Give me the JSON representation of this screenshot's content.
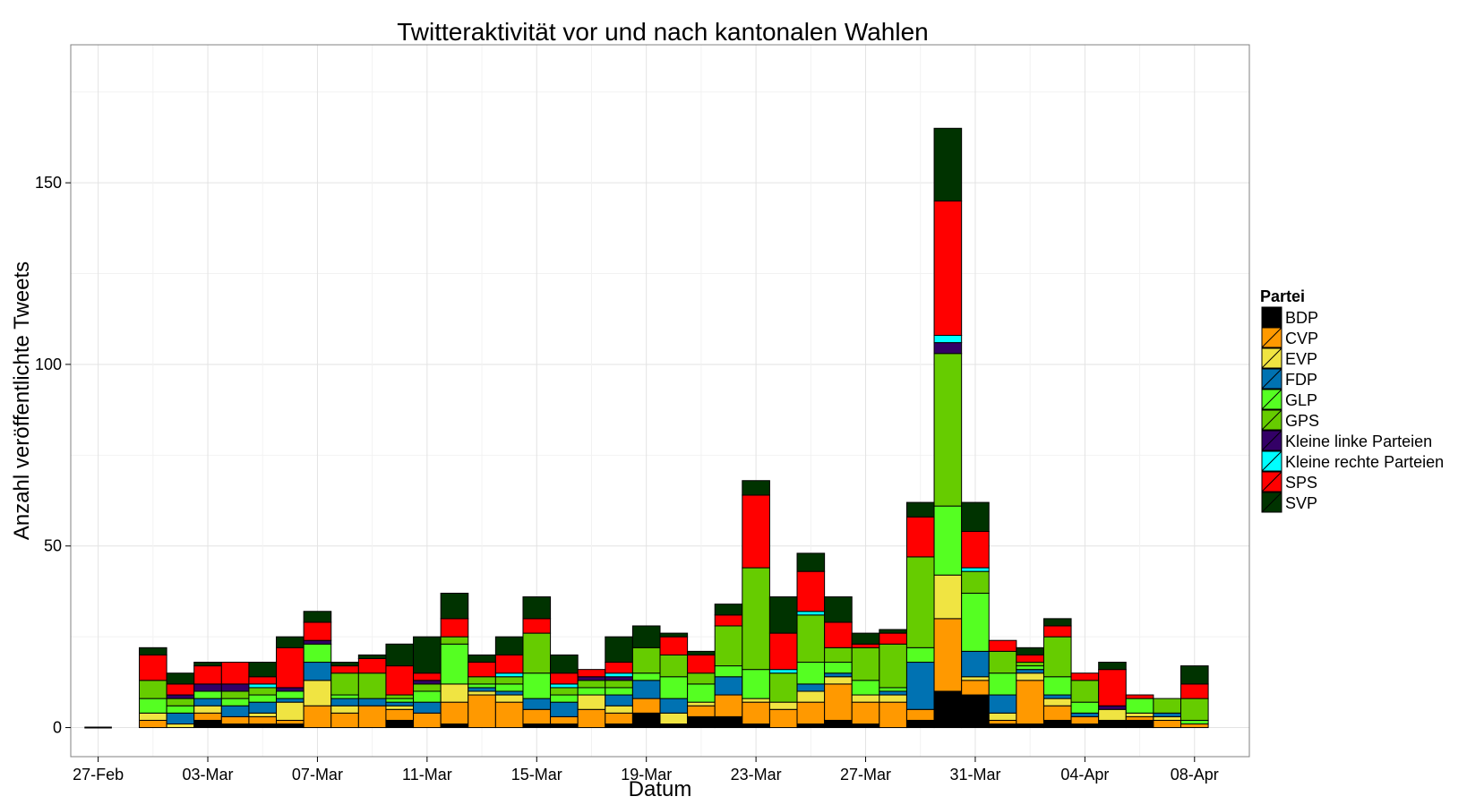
{
  "chart_data": {
    "type": "bar",
    "stacked": true,
    "title": "Twitteraktivität vor und nach kantonalen Wahlen",
    "xlabel": "Datum",
    "ylabel": "Anzahl veröffentlichte Tweets",
    "ylim": [
      -8,
      188
    ],
    "yticks": [
      0,
      50,
      100,
      150
    ],
    "xtick_labels": [
      "27-Feb",
      "03-Mar",
      "07-Mar",
      "11-Mar",
      "15-Mar",
      "19-Mar",
      "23-Mar",
      "27-Mar",
      "31-Mar",
      "04-Apr",
      "08-Apr"
    ],
    "xtick_days": [
      -2,
      2,
      6,
      10,
      14,
      18,
      22,
      26,
      30,
      34,
      38
    ],
    "x_range_days": [
      -3,
      40
    ],
    "grid": true,
    "legend_position": "right",
    "legend_title": "Partei",
    "categories": [
      "27-Feb",
      "28-Feb",
      "01-Mar",
      "02-Mar",
      "03-Mar",
      "04-Mar",
      "05-Mar",
      "06-Mar",
      "07-Mar",
      "08-Mar",
      "09-Mar",
      "10-Mar",
      "11-Mar",
      "12-Mar",
      "13-Mar",
      "14-Mar",
      "15-Mar",
      "16-Mar",
      "17-Mar",
      "18-Mar",
      "19-Mar",
      "20-Mar",
      "21-Mar",
      "22-Mar",
      "23-Mar",
      "24-Mar",
      "25-Mar",
      "26-Mar",
      "27-Mar",
      "28-Mar",
      "29-Mar",
      "30-Mar",
      "31-Mar",
      "01-Apr",
      "02-Apr",
      "03-Apr",
      "04-Apr",
      "05-Apr",
      "06-Apr",
      "07-Apr",
      "08-Apr"
    ],
    "days": [
      -2,
      -1,
      0,
      1,
      2,
      3,
      4,
      5,
      6,
      7,
      8,
      9,
      10,
      11,
      12,
      13,
      14,
      15,
      16,
      17,
      18,
      19,
      20,
      21,
      22,
      23,
      24,
      25,
      26,
      27,
      28,
      29,
      30,
      31,
      32,
      33,
      34,
      35,
      36,
      37,
      38
    ],
    "series": [
      {
        "name": "BDP",
        "color": "#000000",
        "values": [
          0,
          0,
          0,
          0,
          2,
          1,
          1,
          1,
          0,
          0,
          0,
          2,
          0,
          1,
          0,
          0,
          1,
          1,
          0,
          1,
          4,
          1,
          3,
          3,
          1,
          0,
          1,
          2,
          1,
          0,
          2,
          10,
          9,
          1,
          1,
          2,
          1,
          2,
          2,
          0,
          0
        ]
      },
      {
        "name": "CVP",
        "color": "#ff9900",
        "values": [
          0,
          0,
          2,
          0,
          2,
          2,
          2,
          1,
          6,
          4,
          6,
          3,
          4,
          6,
          9,
          7,
          4,
          2,
          5,
          3,
          4,
          0,
          3,
          6,
          6,
          5,
          6,
          10,
          6,
          7,
          3,
          20,
          4,
          1,
          12,
          4,
          2,
          0,
          1,
          2,
          1
        ]
      },
      {
        "name": "EVP",
        "color": "#f0e442",
        "values": [
          0,
          0,
          2,
          1,
          2,
          0,
          1,
          5,
          7,
          2,
          0,
          1,
          0,
          5,
          1,
          2,
          0,
          0,
          4,
          2,
          0,
          3,
          1,
          0,
          1,
          2,
          3,
          2,
          2,
          2,
          0,
          12,
          1,
          2,
          2,
          2,
          0,
          3,
          1,
          1,
          0
        ]
      },
      {
        "name": "FDP",
        "color": "#0072b2",
        "values": [
          0,
          0,
          0,
          3,
          2,
          3,
          3,
          1,
          5,
          2,
          2,
          1,
          3,
          0,
          1,
          1,
          3,
          4,
          0,
          3,
          5,
          4,
          0,
          5,
          0,
          0,
          2,
          1,
          0,
          1,
          13,
          0,
          7,
          5,
          1,
          1,
          1,
          0,
          0,
          1,
          0
        ]
      },
      {
        "name": "GLP",
        "color": "#55ff22",
        "values": [
          0,
          0,
          4,
          2,
          2,
          2,
          2,
          2,
          5,
          1,
          0,
          1,
          3,
          11,
          1,
          2,
          7,
          2,
          2,
          2,
          2,
          6,
          5,
          3,
          8,
          0,
          6,
          3,
          4,
          1,
          4,
          19,
          16,
          6,
          1,
          5,
          3,
          0,
          4,
          0,
          1
        ]
      },
      {
        "name": "GPS",
        "color": "#66cc00",
        "values": [
          0,
          0,
          5,
          2,
          0,
          2,
          2,
          0,
          0,
          6,
          7,
          1,
          2,
          2,
          2,
          2,
          11,
          2,
          2,
          2,
          7,
          6,
          3,
          11,
          28,
          8,
          13,
          4,
          9,
          12,
          25,
          42,
          6,
          6,
          1,
          11,
          6,
          0,
          0,
          4,
          6
        ]
      },
      {
        "name": "Kleine linke Parteien",
        "color": "#330066",
        "values": [
          0,
          0,
          0,
          1,
          2,
          2,
          0,
          1,
          1,
          0,
          0,
          0,
          1,
          0,
          0,
          0,
          0,
          0,
          1,
          1,
          0,
          0,
          0,
          0,
          0,
          0,
          0,
          0,
          0,
          0,
          0,
          3,
          0,
          0,
          0,
          0,
          0,
          1,
          0,
          0,
          0
        ]
      },
      {
        "name": "Kleine rechte Parteien",
        "color": "#00ffff",
        "values": [
          0,
          0,
          0,
          0,
          0,
          0,
          1,
          0,
          0,
          0,
          0,
          0,
          0,
          0,
          0,
          1,
          0,
          1,
          0,
          1,
          0,
          0,
          0,
          0,
          0,
          1,
          1,
          0,
          0,
          0,
          0,
          2,
          1,
          0,
          0,
          0,
          0,
          0,
          0,
          0,
          0
        ]
      },
      {
        "name": "SPS",
        "color": "#ff0000",
        "values": [
          0,
          0,
          7,
          3,
          5,
          6,
          2,
          11,
          5,
          2,
          4,
          8,
          2,
          5,
          4,
          5,
          4,
          3,
          2,
          3,
          0,
          5,
          5,
          3,
          20,
          10,
          11,
          7,
          1,
          3,
          11,
          37,
          10,
          3,
          2,
          3,
          2,
          10,
          1,
          0,
          4
        ]
      },
      {
        "name": "SVP",
        "color": "#003300",
        "values": [
          0,
          0,
          2,
          3,
          1,
          0,
          4,
          3,
          3,
          1,
          1,
          6,
          10,
          7,
          2,
          5,
          6,
          5,
          0,
          7,
          6,
          1,
          1,
          3,
          4,
          10,
          5,
          7,
          3,
          1,
          4,
          20,
          8,
          0,
          2,
          2,
          0,
          2,
          0,
          0,
          5
        ]
      }
    ]
  }
}
